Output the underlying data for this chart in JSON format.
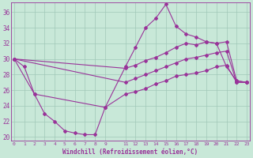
{
  "xlabel": "Windchill (Refroidissement éolien,°C)",
  "background_color": "#c8e8d8",
  "grid_color": "#a0c8b8",
  "line_color": "#993399",
  "xlim": [
    -0.3,
    23.3
  ],
  "ylim": [
    19.5,
    37.2
  ],
  "yticks": [
    20,
    22,
    24,
    26,
    28,
    30,
    32,
    34,
    36
  ],
  "xticks": [
    0,
    1,
    2,
    3,
    4,
    5,
    6,
    7,
    8,
    9,
    11,
    12,
    13,
    14,
    15,
    16,
    17,
    18,
    19,
    20,
    21,
    22,
    23
  ],
  "line_jagged_x": [
    0,
    1,
    2,
    3,
    4,
    5,
    6,
    7,
    8,
    9,
    11,
    12,
    13,
    14,
    15,
    16,
    17,
    18,
    19,
    20,
    21,
    22,
    23
  ],
  "line_jagged_y": [
    30.0,
    29.0,
    25.5,
    23.0,
    22.0,
    20.8,
    20.5,
    20.3,
    20.3,
    23.8,
    29.0,
    31.5,
    34.0,
    35.2,
    37.0,
    34.2,
    33.2,
    32.8,
    32.2,
    32.0,
    29.0,
    27.2,
    27.0
  ],
  "line_high_x": [
    0,
    11,
    12,
    13,
    14,
    15,
    16,
    17,
    18,
    19,
    20,
    21,
    22,
    23
  ],
  "line_high_y": [
    30.0,
    28.8,
    29.2,
    29.8,
    30.2,
    30.8,
    31.5,
    32.0,
    31.8,
    32.2,
    32.0,
    32.2,
    27.2,
    27.0
  ],
  "line_mid_x": [
    0,
    11,
    12,
    13,
    14,
    15,
    16,
    17,
    18,
    19,
    20,
    21,
    22,
    23
  ],
  "line_mid_y": [
    30.0,
    27.0,
    27.5,
    28.0,
    28.5,
    29.0,
    29.5,
    30.0,
    30.2,
    30.5,
    30.8,
    31.0,
    27.0,
    27.0
  ],
  "line_low_x": [
    0,
    2,
    9,
    11,
    12,
    13,
    14,
    15,
    16,
    17,
    18,
    19,
    20,
    21,
    22,
    23
  ],
  "line_low_y": [
    30.0,
    25.5,
    23.8,
    25.5,
    25.8,
    26.2,
    26.8,
    27.2,
    27.8,
    28.0,
    28.2,
    28.5,
    29.0,
    29.2,
    27.0,
    27.0
  ]
}
